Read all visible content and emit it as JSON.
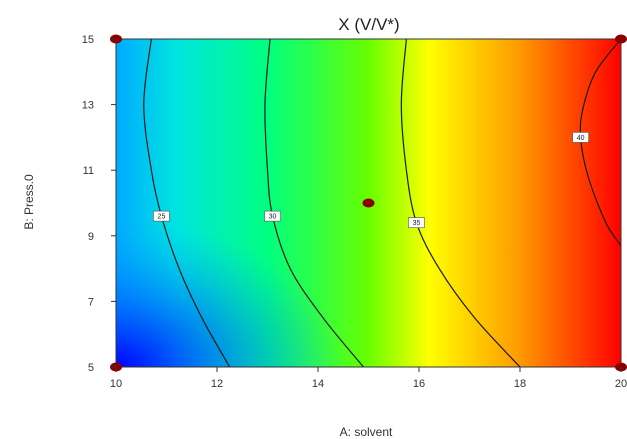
{
  "chart_data": {
    "type": "heatmap",
    "subtype": "contour",
    "title": "X (V/V*)",
    "xlabel": "A: solvent",
    "ylabel": "B: Press.0",
    "xlim": [
      10,
      20
    ],
    "ylim": [
      5,
      15
    ],
    "x_ticks": [
      "10",
      "12",
      "14",
      "16",
      "18",
      "20"
    ],
    "y_ticks": [
      "5",
      "7",
      "9",
      "11",
      "13",
      "15"
    ],
    "colormap": [
      "#0000ff",
      "#00ffff",
      "#00ff00",
      "#ffff00",
      "#ff0000"
    ],
    "grid": false,
    "contours": [
      {
        "label": "25",
        "points": [
          [
            10.7,
            15
          ],
          [
            10.55,
            13
          ],
          [
            10.7,
            11
          ],
          [
            10.9,
            9.6
          ],
          [
            11.25,
            8
          ],
          [
            11.7,
            6.5
          ],
          [
            12.25,
            5
          ]
        ],
        "label_at": [
          10.9,
          9.6
        ]
      },
      {
        "label": "30",
        "points": [
          [
            13.05,
            15
          ],
          [
            12.95,
            13
          ],
          [
            13.0,
            11
          ],
          [
            13.1,
            9.6
          ],
          [
            13.45,
            8
          ],
          [
            14.1,
            6.5
          ],
          [
            14.9,
            5
          ]
        ],
        "label_at": [
          13.1,
          9.6
        ]
      },
      {
        "label": "35",
        "points": [
          [
            15.75,
            15
          ],
          [
            15.65,
            13
          ],
          [
            15.75,
            11
          ],
          [
            15.95,
            9.4
          ],
          [
            16.4,
            8
          ],
          [
            17.1,
            6.5
          ],
          [
            18.0,
            5
          ]
        ],
        "label_at": [
          15.95,
          9.4
        ]
      },
      {
        "label": "40",
        "points": [
          [
            20.0,
            15
          ],
          [
            19.5,
            14
          ],
          [
            19.25,
            12.9
          ],
          [
            19.2,
            12.0
          ],
          [
            19.35,
            10.8
          ],
          [
            19.7,
            9.4
          ],
          [
            20.0,
            8.7
          ]
        ],
        "label_at": [
          19.2,
          12.0
        ]
      }
    ],
    "design_points": [
      {
        "x": 10,
        "y": 15
      },
      {
        "x": 20,
        "y": 15
      },
      {
        "x": 10,
        "y": 5
      },
      {
        "x": 20,
        "y": 5
      },
      {
        "x": 15,
        "y": 10
      }
    ],
    "design_point_color": "#8b0000"
  }
}
